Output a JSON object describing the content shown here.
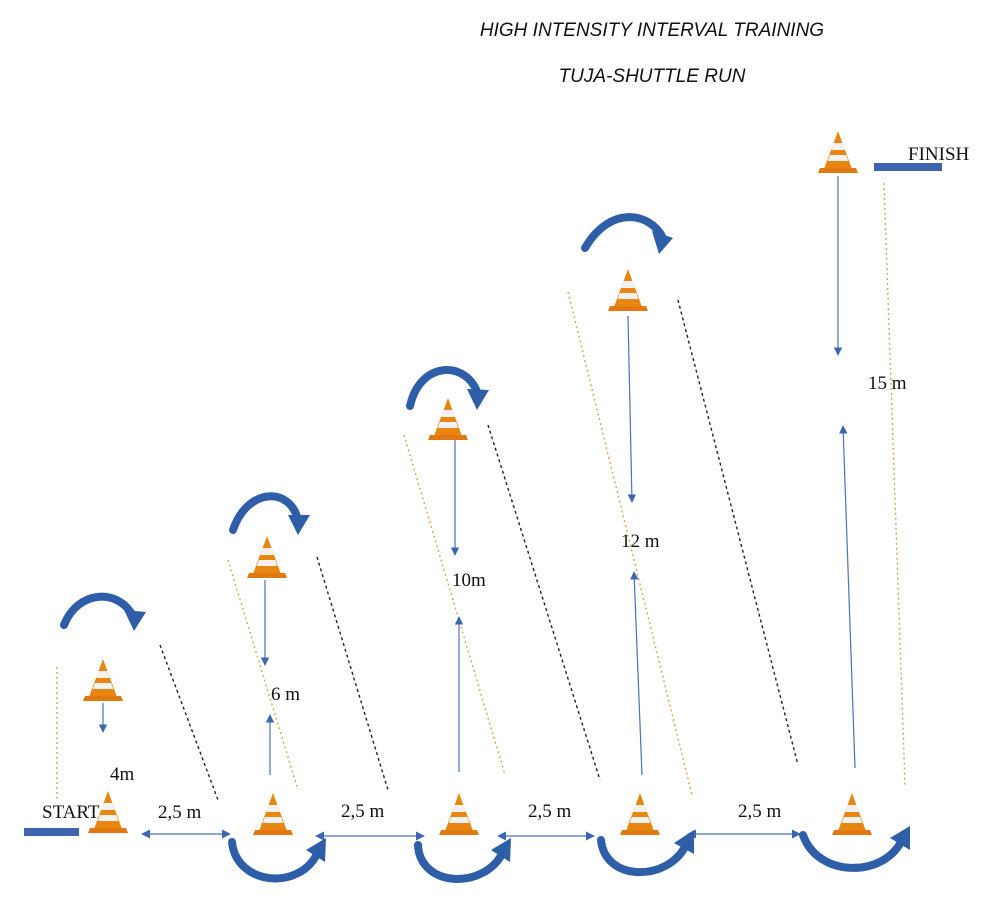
{
  "header": {
    "title": "HIGH INTENSITY INTERVAL TRAINING",
    "subtitle": "TUJA-SHUTTLE RUN"
  },
  "labels": {
    "start": "START",
    "finish": "FINISH"
  },
  "gaps": [
    "2,5 m",
    "2,5 m",
    "2,5 m",
    "2,5 m"
  ],
  "shuttles": [
    "4m",
    "6 m",
    "10m",
    "12 m",
    "15 m"
  ],
  "colors": {
    "arrow_blue": "#2f5ea8",
    "line_blue": "#4a72b8",
    "bar_blue": "#3f64ae",
    "cone_orange": "#e8860f",
    "cone_white": "#f2f2f2",
    "dash_orange": "#d9a35a",
    "dash_black": "#222222"
  },
  "icons": [
    "traffic-cone-icon",
    "curved-arrow-icon"
  ]
}
